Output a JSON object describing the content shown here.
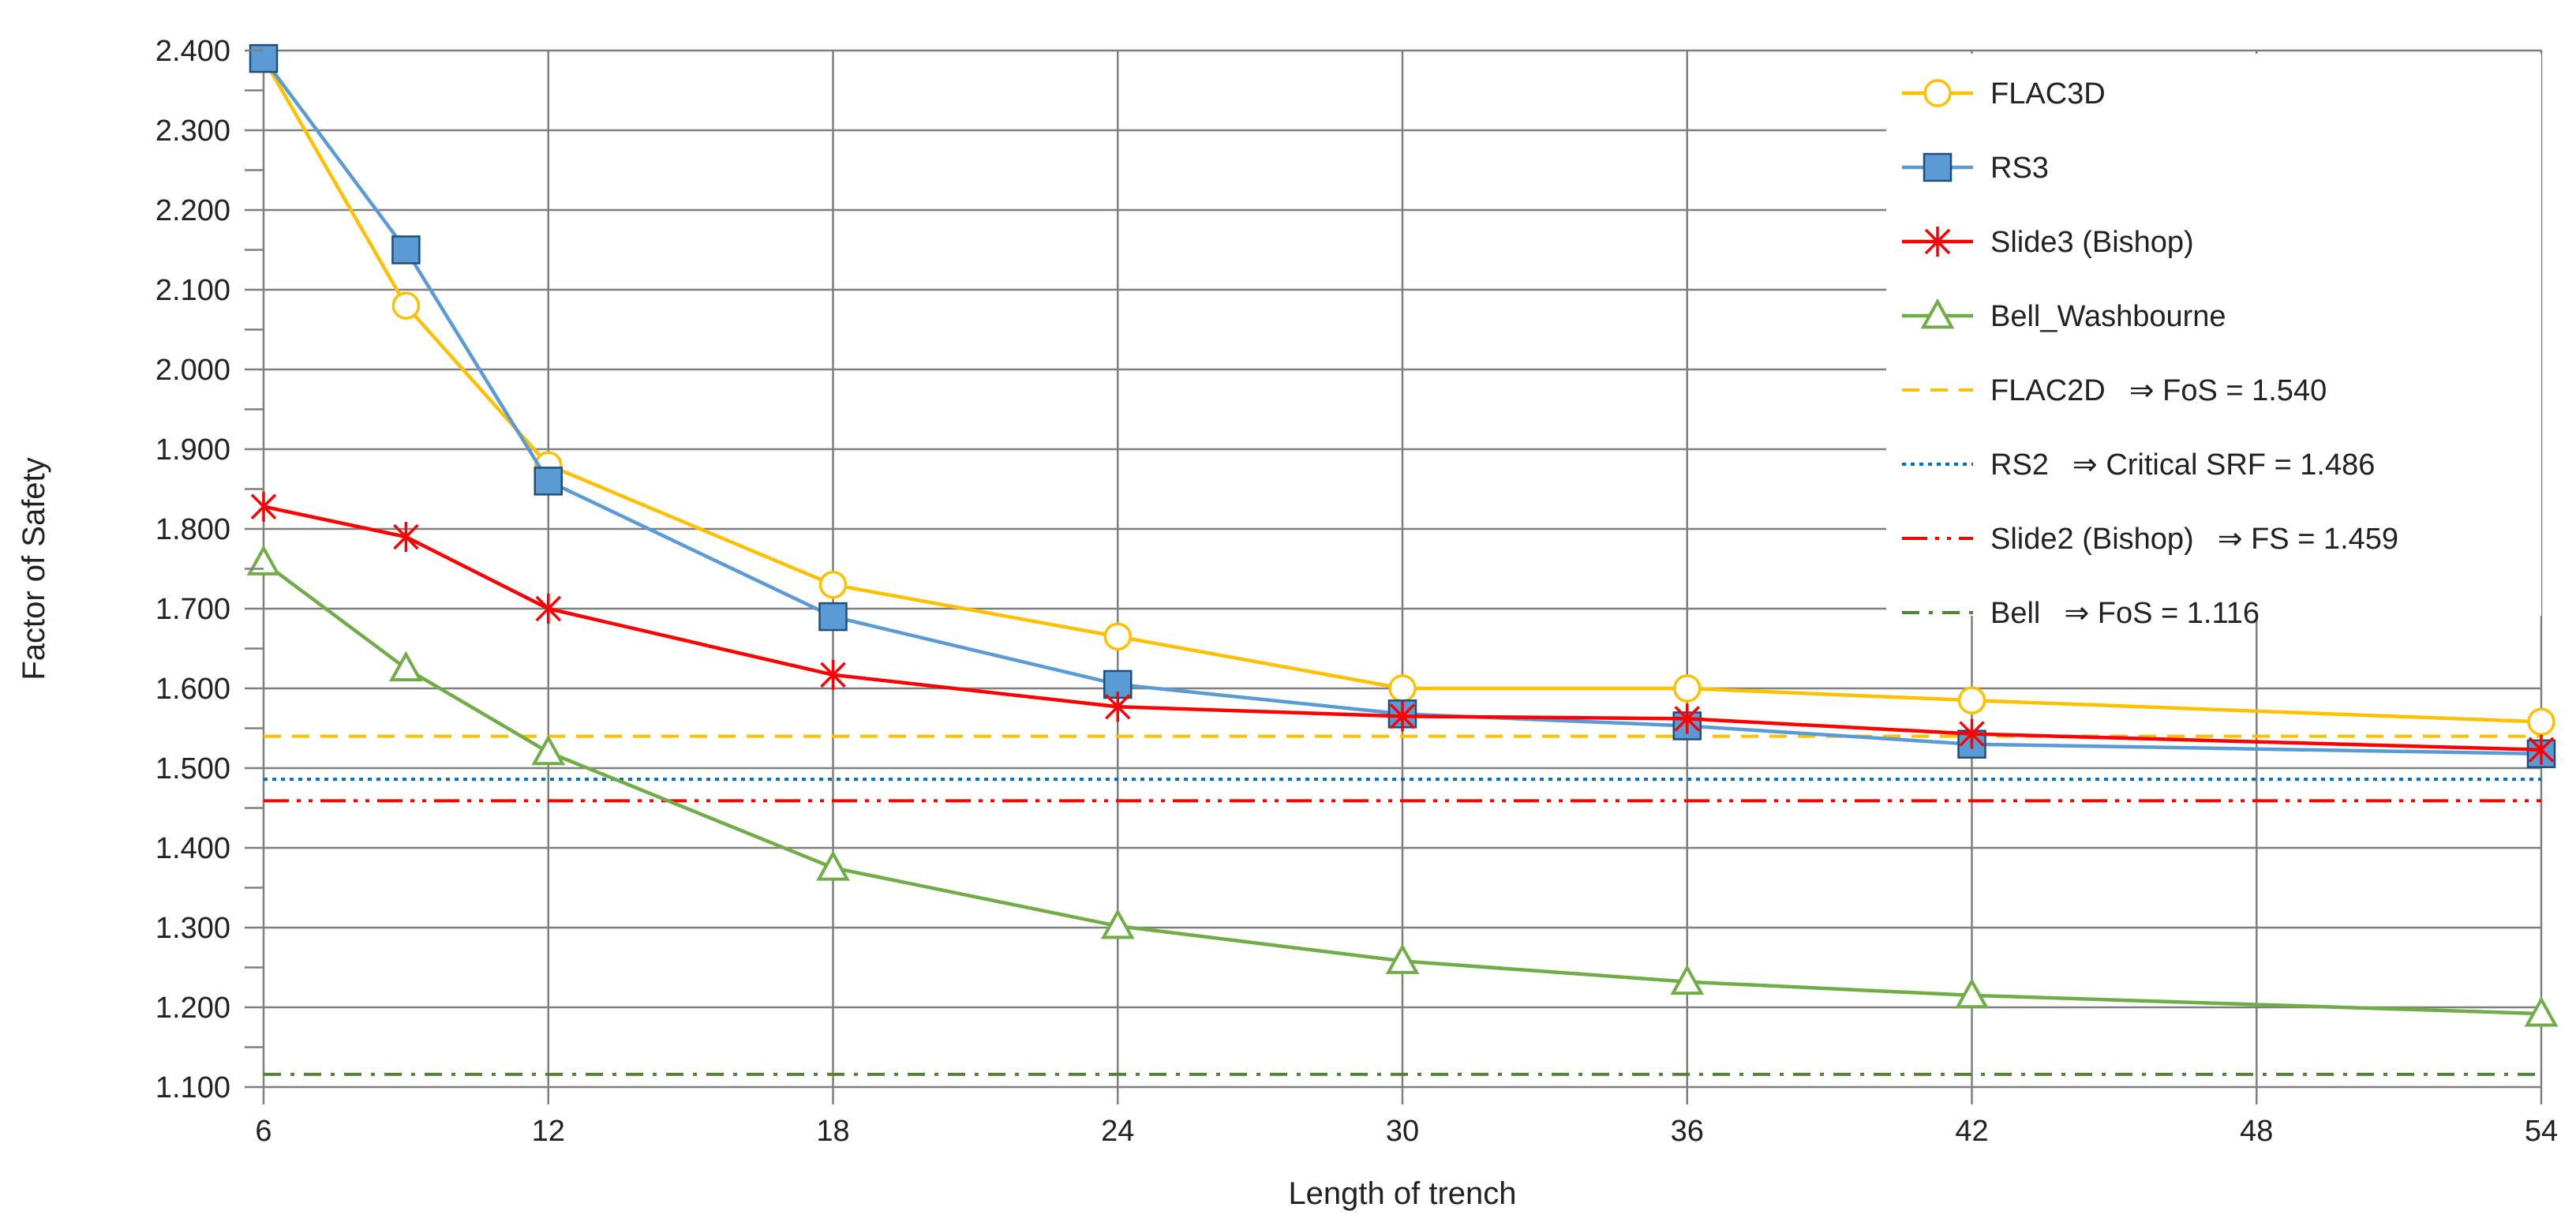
{
  "chart_data": {
    "type": "line",
    "title": "",
    "xlabel": "Length of trench",
    "ylabel": "Factor of Safety",
    "xlim": [
      6,
      54
    ],
    "ylim": [
      1.1,
      2.4
    ],
    "x_ticks": [
      "6",
      "12",
      "18",
      "24",
      "30",
      "36",
      "42",
      "48",
      "54"
    ],
    "y_ticks": [
      "1.100",
      "1.200",
      "1.300",
      "1.400",
      "1.500",
      "1.600",
      "1.700",
      "1.800",
      "1.900",
      "2.000",
      "2.100",
      "2.200",
      "2.300",
      "2.400"
    ],
    "grid": true,
    "legend_position": "top-right",
    "series": [
      {
        "name": "FLAC3D",
        "color": "#FFC000",
        "marker": "circle",
        "x": [
          6,
          9,
          12,
          18,
          24,
          30,
          36,
          42,
          54
        ],
        "values": [
          2.39,
          2.08,
          1.88,
          1.73,
          1.665,
          1.6,
          1.6,
          1.585,
          1.558
        ]
      },
      {
        "name": "RS3",
        "color": "#5B9BD5",
        "marker": "square",
        "x": [
          6,
          9,
          12,
          18,
          24,
          30,
          36,
          42,
          54
        ],
        "values": [
          2.39,
          2.15,
          1.86,
          1.69,
          1.605,
          1.568,
          1.553,
          1.53,
          1.518
        ]
      },
      {
        "name": "Slide3 (Bishop)",
        "color": "#FF0000",
        "marker": "star",
        "x": [
          6,
          9,
          12,
          18,
          24,
          30,
          36,
          42,
          54
        ],
        "values": [
          1.828,
          1.79,
          1.7,
          1.617,
          1.577,
          1.565,
          1.562,
          1.543,
          1.523
        ]
      },
      {
        "name": "Bell_Washbourne",
        "color": "#70AD47",
        "marker": "triangle",
        "x": [
          6,
          9,
          12,
          18,
          24,
          30,
          36,
          42,
          54
        ],
        "values": [
          1.758,
          1.625,
          1.52,
          1.375,
          1.302,
          1.258,
          1.232,
          1.215,
          1.192
        ]
      }
    ],
    "reference_lines": [
      {
        "name": "FLAC2D",
        "note": "⇒ FoS = 1.540",
        "value": 1.54,
        "color": "#FFC000",
        "style": "dashed"
      },
      {
        "name": "RS2",
        "note": "⇒ Critical SRF = 1.486",
        "value": 1.486,
        "color": "#0070C0",
        "style": "dotted"
      },
      {
        "name": "Slide2 (Bishop)",
        "note": "⇒ FS = 1.459",
        "value": 1.459,
        "color": "#FF0000",
        "style": "dash-dot-dot"
      },
      {
        "name": "Bell",
        "note": "⇒ FoS = 1.116",
        "value": 1.116,
        "color": "#548235",
        "style": "dash-dot"
      }
    ]
  }
}
